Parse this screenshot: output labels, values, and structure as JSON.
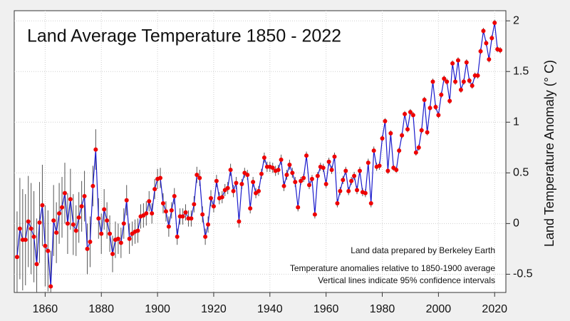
{
  "chart_data": {
    "type": "line",
    "title": "Land Average Temperature 1850 - 2022",
    "y_label": "Land Temperature Anomaly (° C)",
    "annotations": [
      "Land data prepared by Berkeley Earth",
      "Temperature anomalies relative to 1850-1900 average",
      "Vertical lines indicate 95% confidence intervals"
    ],
    "x": [
      1850,
      1851,
      1852,
      1853,
      1854,
      1855,
      1856,
      1857,
      1858,
      1859,
      1860,
      1861,
      1862,
      1863,
      1864,
      1865,
      1866,
      1867,
      1868,
      1869,
      1870,
      1871,
      1872,
      1873,
      1874,
      1875,
      1876,
      1877,
      1878,
      1879,
      1880,
      1881,
      1882,
      1883,
      1884,
      1885,
      1886,
      1887,
      1888,
      1889,
      1890,
      1891,
      1892,
      1893,
      1894,
      1895,
      1896,
      1897,
      1898,
      1899,
      1900,
      1901,
      1902,
      1903,
      1904,
      1905,
      1906,
      1907,
      1908,
      1909,
      1910,
      1911,
      1912,
      1913,
      1914,
      1915,
      1916,
      1917,
      1918,
      1919,
      1920,
      1921,
      1922,
      1923,
      1924,
      1925,
      1926,
      1927,
      1928,
      1929,
      1930,
      1931,
      1932,
      1933,
      1934,
      1935,
      1936,
      1937,
      1938,
      1939,
      1940,
      1941,
      1942,
      1943,
      1944,
      1945,
      1946,
      1947,
      1948,
      1949,
      1950,
      1951,
      1952,
      1953,
      1954,
      1955,
      1956,
      1957,
      1958,
      1959,
      1960,
      1961,
      1962,
      1963,
      1964,
      1965,
      1966,
      1967,
      1968,
      1969,
      1970,
      1971,
      1972,
      1973,
      1974,
      1975,
      1976,
      1977,
      1978,
      1979,
      1980,
      1981,
      1982,
      1983,
      1984,
      1985,
      1986,
      1987,
      1988,
      1989,
      1990,
      1991,
      1992,
      1993,
      1994,
      1995,
      1996,
      1997,
      1998,
      1999,
      2000,
      2001,
      2002,
      2003,
      2004,
      2005,
      2006,
      2007,
      2008,
      2009,
      2010,
      2011,
      2012,
      2013,
      2014,
      2015,
      2016,
      2017,
      2018,
      2019,
      2020,
      2021,
      2022
    ],
    "values": [
      -0.33,
      -0.05,
      -0.16,
      -0.16,
      0.02,
      -0.05,
      -0.13,
      -0.4,
      0.01,
      0.18,
      -0.22,
      -0.27,
      -0.62,
      0.03,
      -0.09,
      0.1,
      0.16,
      0.3,
      0.0,
      0.24,
      -0.01,
      -0.07,
      0.06,
      0.17,
      0.27,
      -0.25,
      -0.18,
      0.37,
      0.73,
      0.05,
      -0.1,
      0.14,
      0.03,
      -0.1,
      -0.3,
      -0.16,
      -0.15,
      -0.19,
      0.0,
      0.23,
      -0.15,
      -0.1,
      -0.08,
      -0.07,
      0.07,
      0.08,
      0.1,
      0.22,
      0.1,
      0.34,
      0.44,
      0.45,
      0.2,
      0.12,
      -0.03,
      0.13,
      0.27,
      -0.13,
      0.07,
      0.07,
      0.11,
      0.05,
      0.05,
      0.19,
      0.48,
      0.45,
      0.09,
      -0.13,
      -0.01,
      0.25,
      0.17,
      0.42,
      0.25,
      0.26,
      0.33,
      0.35,
      0.53,
      0.32,
      0.4,
      0.02,
      0.39,
      0.5,
      0.48,
      0.15,
      0.41,
      0.3,
      0.32,
      0.49,
      0.65,
      0.56,
      0.56,
      0.55,
      0.52,
      0.53,
      0.63,
      0.37,
      0.48,
      0.58,
      0.5,
      0.41,
      0.16,
      0.42,
      0.45,
      0.67,
      0.38,
      0.44,
      0.09,
      0.47,
      0.56,
      0.55,
      0.39,
      0.61,
      0.53,
      0.66,
      0.2,
      0.32,
      0.43,
      0.52,
      0.32,
      0.42,
      0.47,
      0.33,
      0.52,
      0.31,
      0.3,
      0.6,
      0.2,
      0.72,
      0.56,
      0.57,
      0.84,
      1.01,
      0.52,
      0.89,
      0.55,
      0.53,
      0.72,
      0.87,
      1.08,
      0.93,
      1.1,
      1.07,
      0.7,
      0.75,
      0.92,
      1.22,
      0.9,
      1.14,
      1.4,
      1.15,
      1.07,
      1.27,
      1.43,
      1.4,
      1.21,
      1.58,
      1.4,
      1.61,
      1.32,
      1.4,
      1.59,
      1.41,
      1.36,
      1.46,
      1.46,
      1.7,
      1.9,
      1.78,
      1.62,
      1.83,
      1.98,
      1.72,
      1.71
    ],
    "errors": [
      0.45,
      0.5,
      0.5,
      0.45,
      0.45,
      0.45,
      0.45,
      0.45,
      0.4,
      0.4,
      0.4,
      0.4,
      0.35,
      0.35,
      0.3,
      0.3,
      0.3,
      0.3,
      0.3,
      0.3,
      0.3,
      0.25,
      0.25,
      0.25,
      0.25,
      0.25,
      0.25,
      0.2,
      0.2,
      0.2,
      0.2,
      0.2,
      0.18,
      0.18,
      0.18,
      0.18,
      0.15,
      0.15,
      0.15,
      0.15,
      0.15,
      0.12,
      0.12,
      0.12,
      0.12,
      0.12,
      0.12,
      0.1,
      0.1,
      0.1,
      0.1,
      0.1,
      0.1,
      0.1,
      0.1,
      0.08,
      0.08,
      0.08,
      0.08,
      0.08,
      0.08,
      0.08,
      0.08,
      0.08,
      0.08,
      0.08,
      0.08,
      0.08,
      0.08,
      0.08,
      0.06,
      0.06,
      0.06,
      0.06,
      0.06,
      0.06,
      0.06,
      0.06,
      0.06,
      0.06,
      0.05,
      0.05,
      0.05,
      0.05,
      0.05,
      0.05,
      0.05,
      0.05,
      0.05,
      0.05,
      0.05,
      0.05,
      0.05,
      0.05,
      0.05,
      0.05,
      0.05,
      0.05,
      0.05,
      0.05,
      0.04,
      0.04,
      0.04,
      0.04,
      0.04,
      0.04,
      0.04,
      0.04,
      0.04,
      0.04,
      0.04,
      0.04,
      0.04,
      0.04,
      0.04,
      0.04,
      0.04,
      0.04,
      0.04,
      0.04,
      0.04,
      0.04,
      0.04,
      0.04,
      0.04,
      0.04,
      0.04,
      0.04,
      0.04,
      0.04,
      0.03,
      0.03,
      0.03,
      0.03,
      0.03,
      0.03,
      0.03,
      0.03,
      0.03,
      0.03,
      0.03,
      0.03,
      0.03,
      0.03,
      0.03,
      0.03,
      0.03,
      0.03,
      0.03,
      0.03,
      0.03,
      0.03,
      0.03,
      0.03,
      0.03,
      0.03,
      0.03,
      0.03,
      0.03,
      0.03,
      0.03,
      0.03,
      0.03,
      0.03,
      0.03,
      0.03,
      0.03,
      0.03,
      0.03,
      0.03,
      0.03,
      0.03,
      0.03
    ],
    "line_color": "#1a1acc",
    "marker_color": "#ee0000",
    "error_color": "#555555",
    "xlim": [
      1849,
      2024
    ],
    "ylim": [
      -0.68,
      2.1
    ],
    "xticks": [
      1860,
      1880,
      1900,
      1920,
      1940,
      1960,
      1980,
      2000,
      2020
    ],
    "yticks": [
      -0.5,
      0,
      0.5,
      1,
      1.5,
      2
    ],
    "grid": true
  }
}
